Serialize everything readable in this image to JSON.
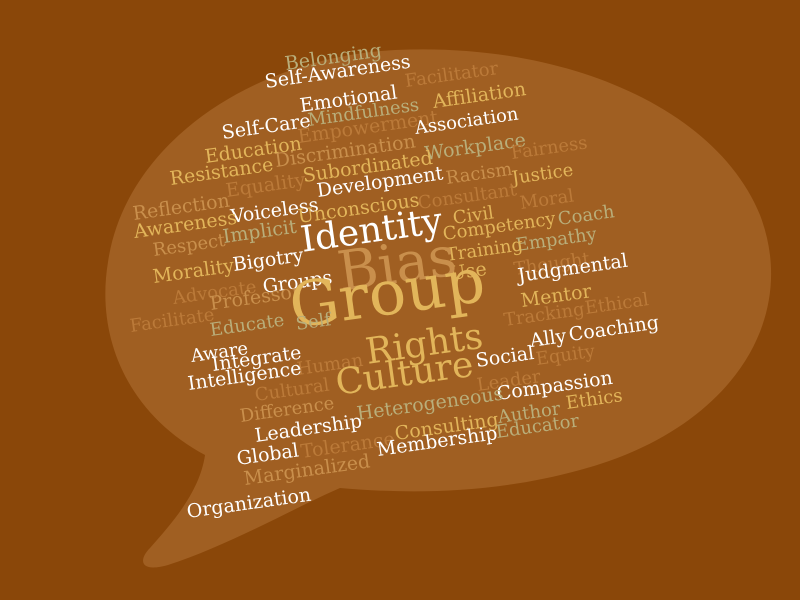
{
  "palette": {
    "background": "#8a4709",
    "bubble": "#a05f22",
    "white": "#ffffff",
    "gold": "#e2b55a",
    "sage": "#b9ae7a",
    "tan": "#c98f4c",
    "rust": "#bb7a39",
    "khaki": "#d5c18a"
  },
  "words": [
    {
      "text": "Belonging",
      "color": "sage"
    },
    {
      "text": "Self-Awareness",
      "color": "white"
    },
    {
      "text": "Facilitator",
      "color": "rust"
    },
    {
      "text": "Emotional",
      "color": "white"
    },
    {
      "text": "Affiliation",
      "color": "gold"
    },
    {
      "text": "Mindfulness",
      "color": "sage"
    },
    {
      "text": "Self-Care",
      "color": "white"
    },
    {
      "text": "Empowerment",
      "color": "rust"
    },
    {
      "text": "Association",
      "color": "white"
    },
    {
      "text": "Education",
      "color": "gold"
    },
    {
      "text": "Discrimination",
      "color": "tan"
    },
    {
      "text": "Workplace",
      "color": "sage"
    },
    {
      "text": "Fairness",
      "color": "rust"
    },
    {
      "text": "Resistance",
      "color": "gold"
    },
    {
      "text": "Equality",
      "color": "rust"
    },
    {
      "text": "Subordinated",
      "color": "gold"
    },
    {
      "text": "Racism",
      "color": "tan"
    },
    {
      "text": "Justice",
      "color": "gold"
    },
    {
      "text": "Development",
      "color": "white"
    },
    {
      "text": "Reflection",
      "color": "tan"
    },
    {
      "text": "Consultant",
      "color": "rust"
    },
    {
      "text": "Moral",
      "color": "rust"
    },
    {
      "text": "Voiceless",
      "color": "white"
    },
    {
      "text": "Unconscious",
      "color": "gold"
    },
    {
      "text": "Civil",
      "color": "gold"
    },
    {
      "text": "Coach",
      "color": "sage"
    },
    {
      "text": "Awareness",
      "color": "gold"
    },
    {
      "text": "Implicit",
      "color": "sage"
    },
    {
      "text": "Competency",
      "color": "gold"
    },
    {
      "text": "Identity",
      "color": "white"
    },
    {
      "text": "Respect",
      "color": "tan"
    },
    {
      "text": "Empathy",
      "color": "sage"
    },
    {
      "text": "Training",
      "color": "gold"
    },
    {
      "text": "Morality",
      "color": "gold"
    },
    {
      "text": "Bigotry",
      "color": "white"
    },
    {
      "text": "Thought",
      "color": "rust"
    },
    {
      "text": "Use",
      "color": "gold"
    },
    {
      "text": "Judgmental",
      "color": "white"
    },
    {
      "text": "Groups",
      "color": "white"
    },
    {
      "text": "Bias",
      "color": "tan"
    },
    {
      "text": "Advocate",
      "color": "rust"
    },
    {
      "text": "Professor",
      "color": "tan"
    },
    {
      "text": "Mentor",
      "color": "gold"
    },
    {
      "text": "Group",
      "color": "gold"
    },
    {
      "text": "Ethical",
      "color": "rust"
    },
    {
      "text": "Facilitate",
      "color": "rust"
    },
    {
      "text": "Tracking",
      "color": "rust"
    },
    {
      "text": "Educate",
      "color": "sage"
    },
    {
      "text": "Self",
      "color": "sage"
    },
    {
      "text": "Ally",
      "color": "white"
    },
    {
      "text": "Coaching",
      "color": "white"
    },
    {
      "text": "Rights",
      "color": "gold"
    },
    {
      "text": "Aware",
      "color": "white"
    },
    {
      "text": "Equity",
      "color": "rust"
    },
    {
      "text": "Integrate",
      "color": "white"
    },
    {
      "text": "Social",
      "color": "white"
    },
    {
      "text": "Human",
      "color": "rust"
    },
    {
      "text": "Intelligence",
      "color": "white"
    },
    {
      "text": "Leader",
      "color": "rust"
    },
    {
      "text": "Cultural",
      "color": "rust"
    },
    {
      "text": "Culture",
      "color": "gold"
    },
    {
      "text": "Compassion",
      "color": "white"
    },
    {
      "text": "Author",
      "color": "sage"
    },
    {
      "text": "Ethics",
      "color": "gold"
    },
    {
      "text": "Difference",
      "color": "tan"
    },
    {
      "text": "Heterogeneous",
      "color": "sage"
    },
    {
      "text": "Leadership",
      "color": "white"
    },
    {
      "text": "Consulting",
      "color": "gold"
    },
    {
      "text": "Educator",
      "color": "sage"
    },
    {
      "text": "Global",
      "color": "white"
    },
    {
      "text": "Tolerance",
      "color": "rust"
    },
    {
      "text": "Membership",
      "color": "white"
    },
    {
      "text": "Marginalized",
      "color": "tan"
    },
    {
      "text": "Organization",
      "color": "white"
    }
  ]
}
